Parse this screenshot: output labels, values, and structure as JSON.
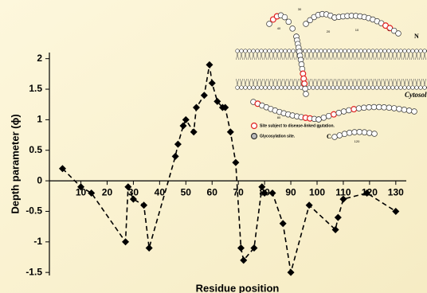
{
  "chart_data": {
    "type": "line",
    "x_label": "Residue position",
    "y_label": "Depth parameter (ϕ)",
    "x": [
      3,
      10,
      14,
      27,
      28,
      30,
      34,
      36,
      46,
      47,
      49,
      50,
      53,
      54,
      57,
      59,
      60,
      62,
      64,
      65,
      67,
      69,
      71,
      72,
      76,
      79,
      80,
      83,
      87,
      90,
      97,
      107,
      108,
      110,
      119,
      130
    ],
    "series": [
      {
        "color": "#000000",
        "values": [
          0.2,
          -0.1,
          -0.2,
          -1.0,
          -0.1,
          -0.3,
          -0.4,
          -1.1,
          0.4,
          0.6,
          0.9,
          1.0,
          0.8,
          1.2,
          1.4,
          1.9,
          1.6,
          1.3,
          1.2,
          1.2,
          0.8,
          0.3,
          -1.1,
          -1.3,
          -1.1,
          -0.1,
          -0.2,
          -0.2,
          -0.7,
          -1.5,
          -0.4,
          -0.8,
          -0.6,
          -0.3,
          -0.2,
          -0.5
        ]
      }
    ],
    "line_style": "dashed",
    "marker": "diamond",
    "xlim": [
      -2,
      134
    ],
    "xticks": [
      10,
      20,
      30,
      40,
      50,
      60,
      70,
      80,
      90,
      100,
      110,
      120,
      130
    ],
    "ylim": [
      -1.55,
      2.1
    ],
    "yticks": [
      2,
      1.5,
      1,
      0.5,
      0,
      -0.5,
      -1,
      -1.5
    ]
  },
  "inset": {
    "legend": [
      "Site subject to disease-linked mutation.",
      "Glycosylation site."
    ],
    "labels": [
      "Cytosol",
      "N",
      "C"
    ],
    "bead_numbers": [
      "30",
      "40",
      "20",
      "10",
      "1",
      "80",
      "90",
      "120"
    ]
  }
}
